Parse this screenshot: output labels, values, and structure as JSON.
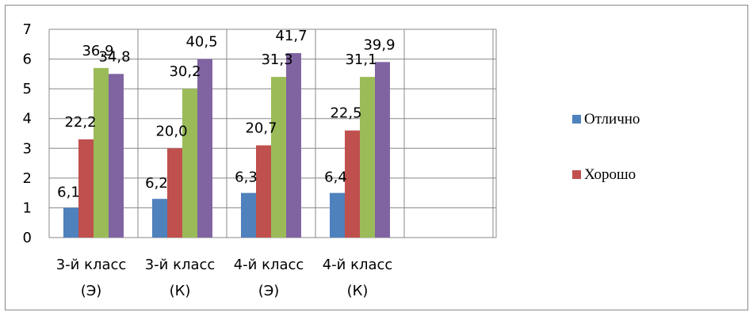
{
  "chart_data": {
    "type": "bar",
    "categories": [
      [
        "3-й класс",
        "(Э)"
      ],
      [
        "3-й класс",
        "(К)"
      ],
      [
        "4-й класс",
        "(Э)"
      ],
      [
        "4-й класс",
        "(К)"
      ]
    ],
    "series": [
      {
        "name": "Отлично",
        "color": "#4F81BD",
        "values": [
          1.0,
          1.3,
          1.5,
          1.5
        ],
        "labels": [
          "6,1",
          "6,2",
          "6,3",
          "6,4"
        ]
      },
      {
        "name": "Хорошо",
        "color": "#C0504D",
        "values": [
          3.3,
          3.0,
          3.1,
          3.6
        ],
        "labels": [
          "22,2",
          "20,0",
          "20,7",
          "22,5"
        ]
      },
      {
        "color": "#9BBB59",
        "values": [
          5.7,
          5.0,
          5.4,
          5.4
        ],
        "labels": [
          "36,9",
          "30,2",
          "31,3",
          "31,1"
        ]
      },
      {
        "color": "#8064A2",
        "values": [
          5.5,
          6.0,
          6.2,
          5.9
        ],
        "labels": [
          "34,8",
          "40,5",
          "41,7",
          "39,9"
        ]
      }
    ],
    "y_ticks": [
      "0",
      "1",
      "2",
      "3",
      "4",
      "5",
      "6",
      "7"
    ],
    "ylim": [
      0,
      7
    ],
    "grid": true,
    "legend_position": "right"
  }
}
